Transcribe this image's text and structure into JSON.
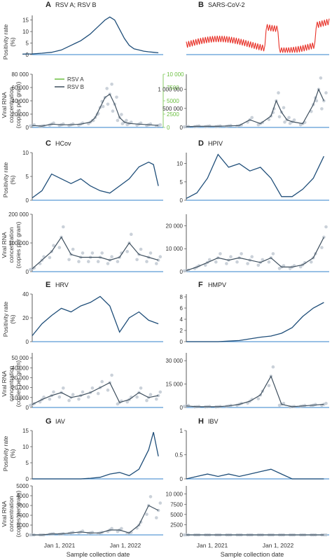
{
  "figure": {
    "xlabel": "Sample collection date",
    "xticks": [
      "Jan 1, 2021",
      "Jan 1, 2022"
    ]
  },
  "panels": [
    {
      "letter": "A",
      "title": "RSV A; RSV B"
    },
    {
      "letter": "B",
      "title": "SARS-CoV-2"
    },
    {
      "letter": "C",
      "title": "HCov"
    },
    {
      "letter": "D",
      "title": "HPIV"
    },
    {
      "letter": "E",
      "title": "HRV"
    },
    {
      "letter": "F",
      "title": "HMPV"
    },
    {
      "letter": "G",
      "title": "IAV"
    },
    {
      "letter": "H",
      "title": "IBV"
    }
  ],
  "labels": {
    "positivity_rate": [
      "Positivity rate",
      "(%)"
    ],
    "viral_rna": [
      "Viral RNA",
      "concentration",
      "(copies per gram)"
    ]
  },
  "colors": {
    "line": "#1f4e79",
    "sars": "#e8332a",
    "rsva": "#6abf3f",
    "points": "#b8c2cc",
    "smooth": "#3e4f5e",
    "axis": "#333333",
    "baseline": "#5b9bd5"
  },
  "chart_data": [
    {
      "panel": "A",
      "type": "line",
      "title": "RSV A; RSV B",
      "positivity": {
        "ylabel": "Positivity rate (%)",
        "ylim": [
          0,
          17
        ],
        "yticks": [
          0,
          5,
          10,
          15
        ],
        "x": [
          0,
          0.1,
          0.2,
          0.3,
          0.4,
          0.5,
          0.55,
          0.6,
          0.65,
          0.7,
          0.75,
          0.8,
          0.85,
          0.9,
          0.95,
          1,
          1.05,
          1.1,
          1.15,
          1.2,
          1.25,
          1.3,
          1.35,
          1.4
        ],
        "y": [
          0.2,
          0.3,
          0.6,
          1.0,
          2.0,
          4.0,
          5.0,
          6.0,
          7.5,
          9.0,
          11.0,
          13.0,
          15.0,
          16.3,
          15.0,
          11.0,
          7.0,
          4.0,
          2.5,
          2.0,
          1.5,
          1.2,
          1.0,
          0.8
        ]
      },
      "rna": {
        "ylabel": "Viral RNA concentration (copies per gram)",
        "ylim": [
          0,
          80000
        ],
        "yticks": [
          0,
          20000,
          40000,
          60000,
          80000
        ],
        "y2lim": [
          0,
          10000
        ],
        "y2ticks": [
          0,
          2500,
          5000,
          7500,
          10000
        ],
        "legend": [
          "RSV A",
          "RSV B"
        ],
        "x": [
          0.1,
          0.2,
          0.3,
          0.4,
          0.5,
          0.6,
          0.7,
          0.75,
          0.8,
          0.85,
          0.9,
          0.95,
          1.0,
          1.05,
          1.1,
          1.2,
          1.3,
          1.4
        ],
        "y": [
          3000,
          2000,
          5000,
          4000,
          4000,
          5000,
          8000,
          15000,
          30000,
          45000,
          50000,
          35000,
          15000,
          8000,
          6000,
          5000,
          4000,
          3000
        ]
      }
    },
    {
      "panel": "B",
      "type": "line",
      "title": "SARS-CoV-2",
      "rna": {
        "ylim": [
          0,
          1400000
        ],
        "yticks": [
          0,
          500000,
          1000000
        ],
        "x": [
          0.1,
          0.2,
          0.3,
          0.4,
          0.5,
          0.6,
          0.7,
          0.8,
          0.9,
          0.95,
          1.0,
          1.05,
          1.1,
          1.2,
          1.3,
          1.35,
          1.4
        ],
        "y": [
          20000,
          30000,
          30000,
          30000,
          40000,
          50000,
          200000,
          100000,
          300000,
          700000,
          400000,
          200000,
          150000,
          100000,
          600000,
          1000000,
          700000
        ]
      }
    },
    {
      "panel": "C",
      "type": "line",
      "title": "HCov",
      "positivity": {
        "ylim": [
          0,
          10
        ],
        "yticks": [
          0,
          5,
          10
        ],
        "x": [
          0.1,
          0.2,
          0.3,
          0.4,
          0.5,
          0.6,
          0.7,
          0.8,
          0.9,
          1.0,
          1.1,
          1.2,
          1.3,
          1.35,
          1.4
        ],
        "y": [
          0.5,
          2.0,
          5.5,
          4.5,
          3.5,
          4.5,
          3.0,
          2.0,
          1.5,
          3.0,
          4.5,
          7.0,
          8.0,
          7.5,
          3.0
        ]
      },
      "rna": {
        "ylim": [
          0,
          200000
        ],
        "yticks": [
          0,
          100000,
          200000
        ],
        "x": [
          0.1,
          0.2,
          0.3,
          0.4,
          0.5,
          0.6,
          0.7,
          0.8,
          0.9,
          1.0,
          1.1,
          1.2,
          1.3,
          1.4
        ],
        "y": [
          10000,
          40000,
          70000,
          120000,
          60000,
          50000,
          50000,
          50000,
          40000,
          50000,
          100000,
          60000,
          50000,
          40000
        ]
      }
    },
    {
      "panel": "D",
      "type": "line",
      "title": "HPIV",
      "positivity": {
        "ylim": [
          0,
          13
        ],
        "yticks": [
          0,
          5,
          10
        ],
        "x": [
          0.1,
          0.2,
          0.3,
          0.4,
          0.5,
          0.6,
          0.7,
          0.8,
          0.9,
          1.0,
          1.1,
          1.2,
          1.3,
          1.4
        ],
        "y": [
          0.5,
          2.0,
          6.0,
          12.5,
          9.0,
          10.0,
          8.0,
          9.0,
          6.0,
          1.0,
          1.0,
          3.0,
          6.0,
          12.0
        ]
      },
      "rna": {
        "ylim": [
          0,
          25000
        ],
        "yticks": [
          0,
          10000,
          20000
        ],
        "x": [
          0.1,
          0.2,
          0.3,
          0.4,
          0.5,
          0.6,
          0.7,
          0.8,
          0.9,
          1.0,
          1.1,
          1.2,
          1.3,
          1.4
        ],
        "y": [
          500,
          2000,
          4000,
          6000,
          5000,
          6000,
          5000,
          4000,
          6000,
          2000,
          2000,
          3000,
          6000,
          15000
        ]
      }
    },
    {
      "panel": "E",
      "type": "line",
      "title": "HRV",
      "positivity": {
        "ylim": [
          0,
          40
        ],
        "yticks": [
          0,
          20,
          40
        ],
        "x": [
          0.1,
          0.2,
          0.3,
          0.4,
          0.5,
          0.6,
          0.7,
          0.8,
          0.9,
          1.0,
          1.1,
          1.2,
          1.3,
          1.4
        ],
        "y": [
          5,
          15,
          22,
          28,
          25,
          30,
          33,
          38,
          30,
          8,
          20,
          25,
          18,
          15
        ]
      },
      "rna": {
        "ylim": [
          0,
          55000
        ],
        "yticks": [
          0,
          10000,
          20000,
          30000,
          40000,
          50000
        ],
        "x": [
          0.1,
          0.2,
          0.3,
          0.4,
          0.5,
          0.6,
          0.7,
          0.8,
          0.9,
          1.0,
          1.1,
          1.2,
          1.3,
          1.4
        ],
        "y": [
          3000,
          8000,
          12000,
          15000,
          10000,
          12000,
          15000,
          20000,
          25000,
          5000,
          8000,
          15000,
          10000,
          12000
        ]
      }
    },
    {
      "panel": "F",
      "type": "line",
      "title": "HMPV",
      "positivity": {
        "ylim": [
          0,
          8.5
        ],
        "yticks": [
          0,
          2,
          4,
          6,
          8
        ],
        "x": [
          0.1,
          0.2,
          0.3,
          0.4,
          0.5,
          0.6,
          0.7,
          0.8,
          0.9,
          1.0,
          1.1,
          1.2,
          1.3,
          1.4
        ],
        "y": [
          0,
          0,
          0,
          0,
          0.1,
          0.2,
          0.5,
          0.8,
          1.0,
          1.5,
          2.5,
          4.5,
          6.0,
          7.0
        ]
      },
      "rna": {
        "ylim": [
          0,
          35000
        ],
        "yticks": [
          0,
          15000,
          30000
        ],
        "x": [
          0.1,
          0.2,
          0.3,
          0.4,
          0.5,
          0.6,
          0.7,
          0.8,
          0.9,
          1.0,
          1.1,
          1.2,
          1.3,
          1.4
        ],
        "y": [
          1000,
          500,
          500,
          500,
          1000,
          2000,
          4000,
          8000,
          20000,
          2000,
          500,
          1000,
          1500,
          2000
        ]
      }
    },
    {
      "panel": "G",
      "type": "line",
      "title": "IAV",
      "positivity": {
        "ylim": [
          0,
          15
        ],
        "yticks": [
          0,
          5,
          10,
          15
        ],
        "x": [
          0.1,
          0.2,
          0.3,
          0.4,
          0.5,
          0.6,
          0.7,
          0.8,
          0.9,
          1.0,
          1.1,
          1.2,
          1.3,
          1.35,
          1.4
        ],
        "y": [
          0,
          0,
          0,
          0,
          0,
          0,
          0.2,
          0.5,
          1.5,
          2.0,
          1.0,
          3.0,
          9.0,
          14.5,
          7.0
        ]
      },
      "rna": {
        "ylim": [
          0,
          5000
        ],
        "yticks": [
          0,
          1000,
          2000,
          3000,
          4000,
          5000
        ],
        "x": [
          0.1,
          0.2,
          0.3,
          0.4,
          0.5,
          0.6,
          0.7,
          0.8,
          0.9,
          1.0,
          1.1,
          1.2,
          1.3,
          1.4
        ],
        "y": [
          0,
          0,
          100,
          100,
          200,
          300,
          200,
          200,
          500,
          500,
          200,
          1000,
          3000,
          2500
        ]
      }
    },
    {
      "panel": "H",
      "type": "line",
      "title": "IBV",
      "positivity": {
        "ylim": [
          0,
          1.0
        ],
        "yticks": [
          0,
          0.5,
          1.0
        ],
        "x": [
          0.1,
          0.2,
          0.3,
          0.4,
          0.5,
          0.6,
          0.7,
          0.8,
          0.9,
          1.0,
          1.1,
          1.2,
          1.3,
          1.4
        ],
        "y": [
          0,
          0.05,
          0.1,
          0.05,
          0.1,
          0.05,
          0.1,
          0.15,
          0.2,
          0.1,
          0,
          0,
          0,
          0
        ]
      },
      "rna": {
        "ylim": [
          0,
          12000
        ],
        "yticks": [
          0,
          2500,
          5000,
          7500,
          10000
        ],
        "x": [
          0.1,
          0.2,
          0.3,
          0.4,
          0.5,
          0.6,
          0.7,
          0.8,
          0.9,
          1.0,
          1.1,
          1.2,
          1.3,
          1.4
        ],
        "y": [
          0,
          0,
          0,
          0,
          0,
          0,
          0,
          0,
          0,
          0,
          0,
          0,
          0,
          0
        ]
      }
    }
  ]
}
